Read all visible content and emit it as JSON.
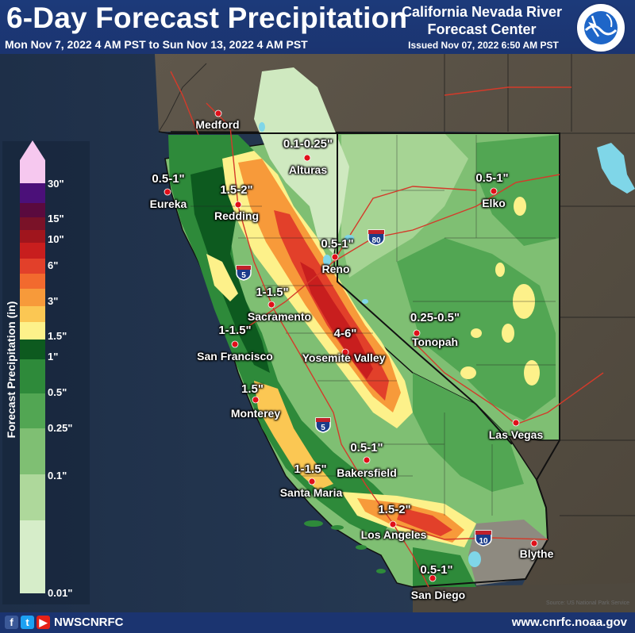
{
  "header": {
    "title": "6-Day Forecast Precipitation",
    "period": "Mon Nov 7, 2022 4 AM PST to Sun Nov 13, 2022 4 AM PST",
    "agency": "California Nevada River Forecast Center",
    "issued": "Issued Nov 07, 2022 6:50 AM PST",
    "seal_text": "NATIONAL WEATHER SERVICE"
  },
  "legend": {
    "title": "Forecast Precipitation (in)",
    "ticks": [
      "30\"",
      "15\"",
      "10\"",
      "6\"",
      "3\"",
      "1.5\"",
      "1\"",
      "0.5\"",
      "0.25\"",
      "0.1\"",
      "0.01\""
    ],
    "colors": [
      "#f6c8ef",
      "#4b1079",
      "#5a0a3e",
      "#7a1228",
      "#a0151d",
      "#c81e1e",
      "#e2402a",
      "#f26a2e",
      "#f79a3a",
      "#fbc753",
      "#fdf18a",
      "#0d5a1f",
      "#2e8a3a",
      "#52a653",
      "#7fbf73",
      "#aed89b",
      "#d6edc9"
    ],
    "notes": "Color bands from top: 30+ (light pink), 15-30 purple, ... 1-1.5 yellow, 0.5-1 dark green, 0.01-0.1 pale green"
  },
  "cities": [
    {
      "name": "Medford"
    },
    {
      "name": "Alturas"
    },
    {
      "name": "Eureka"
    },
    {
      "name": "Redding"
    },
    {
      "name": "Elko"
    },
    {
      "name": "Reno"
    },
    {
      "name": "Sacramento"
    },
    {
      "name": "San Francisco"
    },
    {
      "name": "Tonopah"
    },
    {
      "name": "Yosemite Valley"
    },
    {
      "name": "Monterey"
    },
    {
      "name": "Las Vegas"
    },
    {
      "name": "Bakersfield"
    },
    {
      "name": "Santa Maria"
    },
    {
      "name": "Los Angeles"
    },
    {
      "name": "Blythe"
    },
    {
      "name": "San Diego"
    }
  ],
  "amounts": [
    {
      "value": "0.1-0.25\""
    },
    {
      "value": "0.5-1\""
    },
    {
      "value": "1.5-2\""
    },
    {
      "value": "0.5-1\""
    },
    {
      "value": "0.5-1\""
    },
    {
      "value": "1-1.5\""
    },
    {
      "value": "1-1.5\""
    },
    {
      "value": "4-6\""
    },
    {
      "value": "0.25-0.5\""
    },
    {
      "value": "1.5\""
    },
    {
      "value": "0.5-1\""
    },
    {
      "value": "1-1.5\""
    },
    {
      "value": "1.5-2\""
    },
    {
      "value": "0.5-1\""
    }
  ],
  "highways": [
    "5",
    "80",
    "5",
    "10"
  ],
  "footer": {
    "handle": "NWSCNRFC",
    "url": "www.cnrfc.noaa.gov",
    "source": "Source: US National Park Service",
    "social_icons": [
      "facebook-icon",
      "twitter-icon",
      "youtube-icon"
    ]
  },
  "colors": {
    "header_bg": "#1b3470",
    "ocean": "#23354f",
    "outside_land": "#5a5246",
    "city_dot": "#e0101a",
    "roads": "#d43a2a"
  }
}
